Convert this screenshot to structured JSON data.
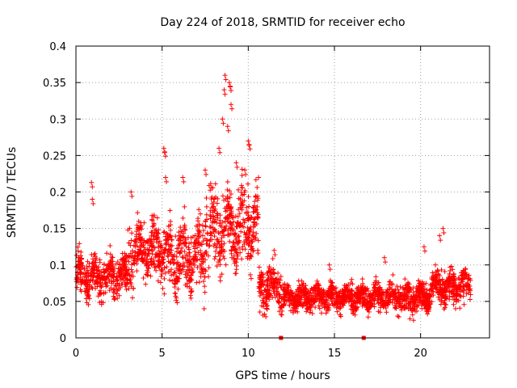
{
  "chart_data": {
    "type": "scatter",
    "title": "Day 224 of 2018, SRMTID for receiver echo",
    "xlabel": "GPS time / hours",
    "ylabel": "SRMTID / TECUs",
    "xlim": [
      0,
      24
    ],
    "ylim": [
      0,
      0.4
    ],
    "xticks": [
      0,
      5,
      10,
      15,
      20
    ],
    "yticks": [
      0,
      0.05,
      0.1,
      0.15,
      0.2,
      0.25,
      0.3,
      0.35,
      0.4
    ],
    "ytick_labels": [
      "0",
      "0.05",
      "0.1",
      "0.15",
      "0.2",
      "0.25",
      "0.3",
      "0.35",
      "0.4"
    ],
    "grid": true,
    "marker": "plus",
    "color": "#ff0000",
    "segments": [
      {
        "x0": 0.0,
        "x1": 3.0,
        "mean": 0.085,
        "spread": 0.032
      },
      {
        "x0": 3.0,
        "x1": 5.0,
        "mean": 0.12,
        "spread": 0.045
      },
      {
        "x0": 5.0,
        "x1": 7.5,
        "mean": 0.11,
        "spread": 0.05
      },
      {
        "x0": 7.5,
        "x1": 10.6,
        "mean": 0.15,
        "spread": 0.06
      },
      {
        "x0": 10.6,
        "x1": 11.9,
        "mean": 0.07,
        "spread": 0.03
      },
      {
        "x0": 11.9,
        "x1": 16.7,
        "mean": 0.055,
        "spread": 0.02
      },
      {
        "x0": 16.7,
        "x1": 20.5,
        "mean": 0.055,
        "spread": 0.022
      },
      {
        "x0": 20.5,
        "x1": 22.9,
        "mean": 0.07,
        "spread": 0.025
      }
    ],
    "peaks": [
      {
        "x": 0.9,
        "y": 0.213
      },
      {
        "x": 0.95,
        "y": 0.19
      },
      {
        "x": 3.2,
        "y": 0.2
      },
      {
        "x": 5.1,
        "y": 0.26
      },
      {
        "x": 5.15,
        "y": 0.255
      },
      {
        "x": 5.2,
        "y": 0.22
      },
      {
        "x": 6.2,
        "y": 0.22
      },
      {
        "x": 7.5,
        "y": 0.23
      },
      {
        "x": 8.3,
        "y": 0.26
      },
      {
        "x": 8.5,
        "y": 0.3
      },
      {
        "x": 8.6,
        "y": 0.34
      },
      {
        "x": 8.65,
        "y": 0.36
      },
      {
        "x": 8.9,
        "y": 0.35
      },
      {
        "x": 8.95,
        "y": 0.345
      },
      {
        "x": 9.0,
        "y": 0.32
      },
      {
        "x": 8.8,
        "y": 0.29
      },
      {
        "x": 9.3,
        "y": 0.24
      },
      {
        "x": 10.0,
        "y": 0.27
      },
      {
        "x": 10.05,
        "y": 0.265
      },
      {
        "x": 9.8,
        "y": 0.23
      },
      {
        "x": 11.5,
        "y": 0.12
      },
      {
        "x": 14.7,
        "y": 0.1
      },
      {
        "x": 16.0,
        "y": 0.08
      },
      {
        "x": 17.9,
        "y": 0.11
      },
      {
        "x": 20.2,
        "y": 0.125
      },
      {
        "x": 21.1,
        "y": 0.14
      },
      {
        "x": 21.3,
        "y": 0.15
      }
    ],
    "floor_markers": [
      {
        "x": 11.9,
        "y": 0
      },
      {
        "x": 16.7,
        "y": 0
      }
    ],
    "seed": 224
  }
}
